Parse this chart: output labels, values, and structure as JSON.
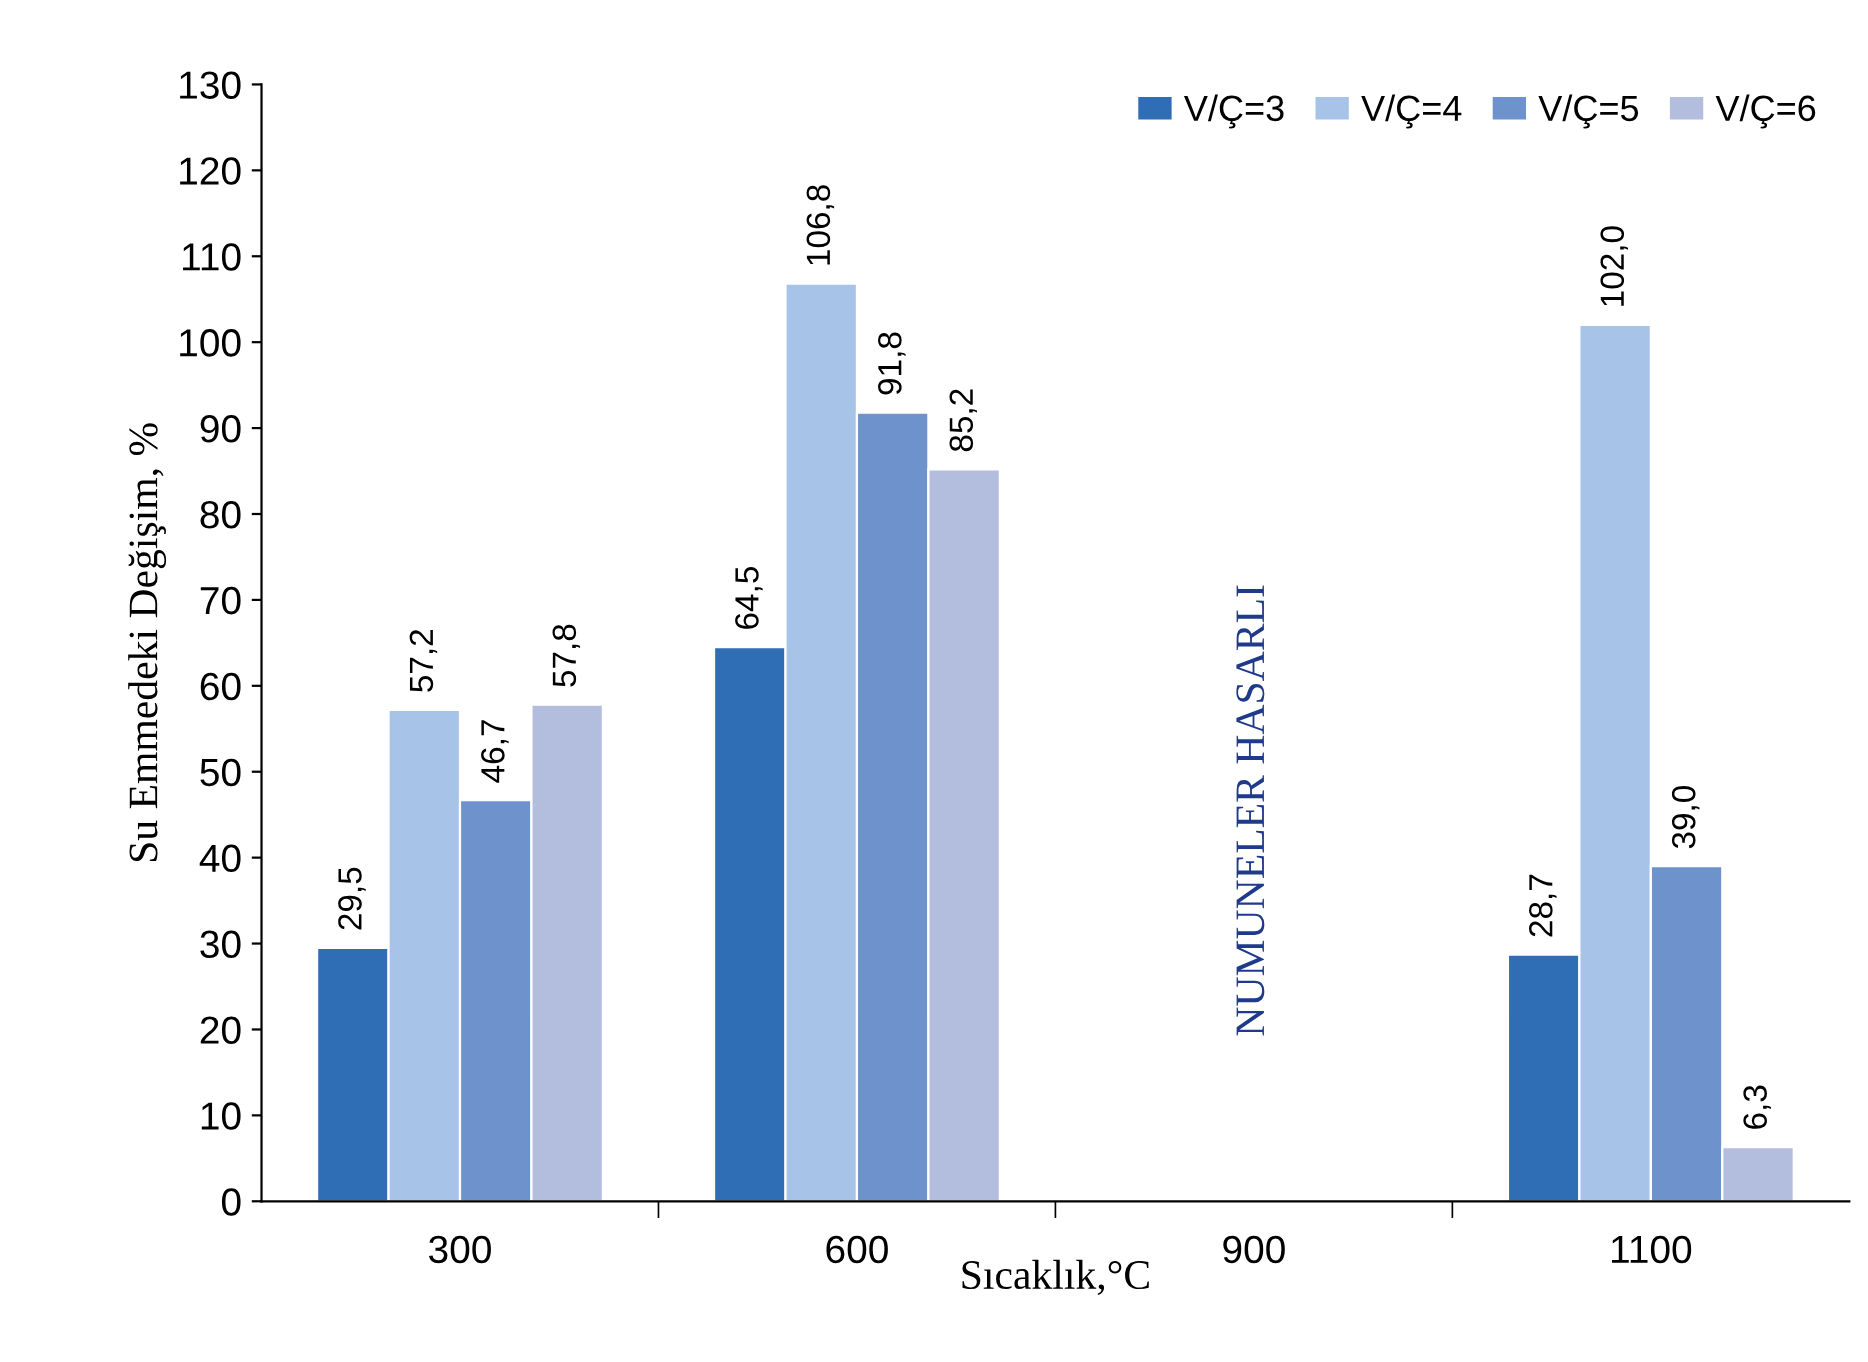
{
  "chart_data": {
    "type": "bar",
    "xlabel": "Sıcaklık,°C",
    "ylabel": "Su Emmedeki Değişim, %",
    "categories": [
      "300",
      "600",
      "900",
      "1100"
    ],
    "series": [
      {
        "name": "V/Ç=3",
        "color": "#2f6db5",
        "values": [
          29.5,
          64.5,
          null,
          28.7
        ],
        "value_labels": [
          "29,5",
          "64,5",
          null,
          "28,7"
        ]
      },
      {
        "name": "V/Ç=4",
        "color": "#a8c3e8",
        "values": [
          57.2,
          106.8,
          null,
          102.0
        ],
        "value_labels": [
          "57,2",
          "106,8",
          null,
          "102,0"
        ]
      },
      {
        "name": "V/Ç=5",
        "color": "#6d92cc",
        "values": [
          46.7,
          91.8,
          null,
          39.0
        ],
        "value_labels": [
          "46,7",
          "91,8",
          null,
          "39,0"
        ]
      },
      {
        "name": "V/Ç=6",
        "color": "#b3bddd",
        "values": [
          57.8,
          85.2,
          null,
          6.3
        ],
        "value_labels": [
          "57,8",
          "85,2",
          null,
          "6,3"
        ]
      }
    ],
    "annotations": [
      "NUMUNELER HASARLI"
    ],
    "ylim": [
      0,
      130
    ],
    "yticks": [
      0,
      10,
      20,
      30,
      40,
      50,
      60,
      70,
      80,
      90,
      100,
      110,
      120,
      130
    ],
    "grid": false,
    "legend": "top right"
  }
}
